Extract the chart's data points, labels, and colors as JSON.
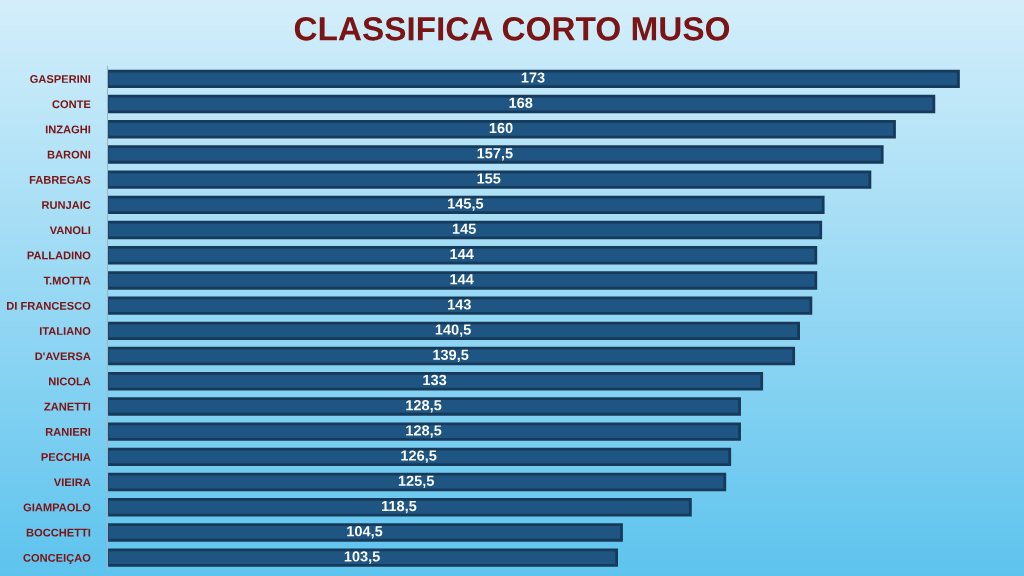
{
  "chart_data": {
    "type": "bar",
    "orientation": "horizontal",
    "title": "CLASSIFICA CORTO MUSO",
    "categories": [
      "GASPERINI",
      "CONTE",
      "INZAGHI",
      "BARONI",
      "FABREGAS",
      "RUNJAIC",
      "VANOLI",
      "PALLADINO",
      "T.MOTTA",
      "DI FRANCESCO",
      "ITALIANO",
      "D'AVERSA",
      "NICOLA",
      "ZANETTI",
      "RANIERI",
      "PECCHIA",
      "VIEIRA",
      "GIAMPAOLO",
      "BOCCHETTI",
      "CONCEIÇAO"
    ],
    "values": [
      173,
      168,
      160,
      157.5,
      155,
      145.5,
      145,
      144,
      144,
      143,
      140.5,
      139.5,
      133,
      128.5,
      128.5,
      126.5,
      125.5,
      118.5,
      104.5,
      103.5
    ],
    "value_labels": [
      "173",
      "168",
      "160",
      "157,5",
      "155",
      "145,5",
      "145",
      "144",
      "144",
      "143",
      "140,5",
      "139,5",
      "133",
      "128,5",
      "128,5",
      "126,5",
      "125,5",
      "118,5",
      "104,5",
      "103,5"
    ],
    "color": "#1f5582",
    "tick_labels": "y"
  }
}
